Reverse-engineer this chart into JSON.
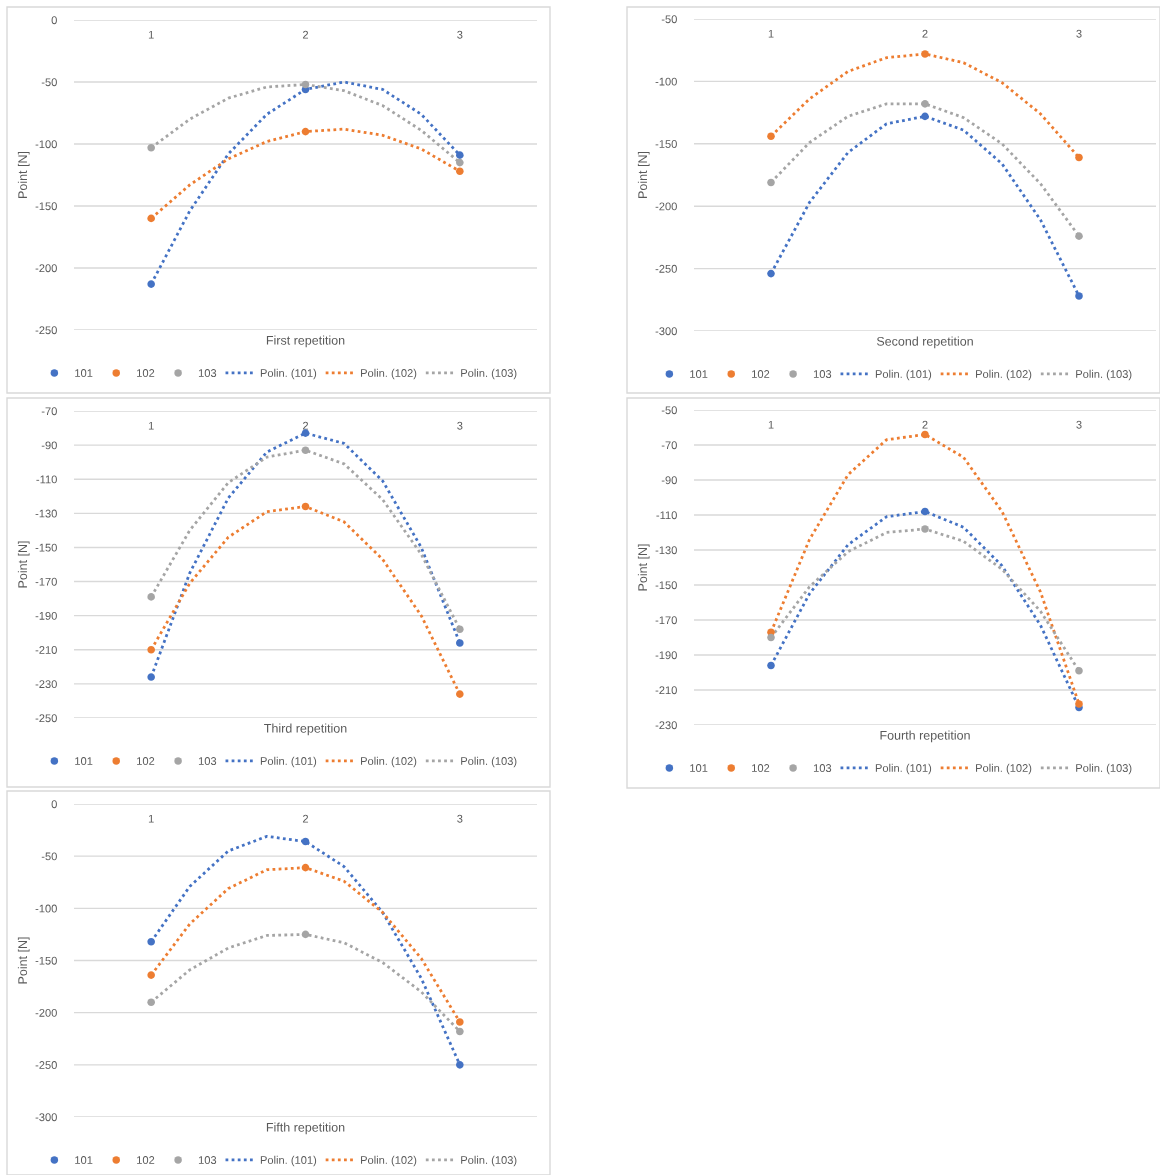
{
  "chart_data": [
    {
      "type": "scatter",
      "xlabel": "First repetition",
      "ylabel": "Point [N]",
      "x": [
        1,
        2,
        3
      ],
      "xlim": [
        0.5,
        3.5
      ],
      "xticks": [
        1,
        2,
        3
      ],
      "ylim": [
        -250,
        0
      ],
      "yticks": [
        0,
        -50,
        -100,
        -150,
        -200,
        -250
      ],
      "grid": "y",
      "legend": "bottom",
      "marker": "circle",
      "series": [
        {
          "name": "101",
          "color": "#4472c4",
          "values": [
            -213,
            -56,
            -109
          ]
        },
        {
          "name": "102",
          "color": "#ed7d31",
          "values": [
            -160,
            -90,
            -122
          ]
        },
        {
          "name": "103",
          "color": "#a5a5a5",
          "values": [
            -103,
            -52,
            -115
          ]
        },
        {
          "name": "Polin. (101)",
          "type": "line",
          "color": "#4472c4",
          "line_style": "dotted",
          "marker": "none",
          "x": [
            1,
            1.25,
            1.5,
            1.75,
            2,
            2.25,
            2.5,
            2.75,
            3
          ],
          "values": [
            -213,
            -154,
            -108,
            -76,
            -56,
            -50,
            -56,
            -76,
            -109
          ]
        },
        {
          "name": "Polin. (102)",
          "type": "line",
          "color": "#ed7d31",
          "line_style": "dotted",
          "marker": "none",
          "x": [
            1,
            1.25,
            1.5,
            1.75,
            2,
            2.25,
            2.5,
            2.75,
            3
          ],
          "values": [
            -160,
            -133,
            -112,
            -98,
            -90,
            -88,
            -93,
            -104,
            -122
          ]
        },
        {
          "name": "Polin. (103)",
          "type": "line",
          "color": "#a5a5a5",
          "line_style": "dotted",
          "marker": "none",
          "x": [
            1,
            1.25,
            1.5,
            1.75,
            2,
            2.25,
            2.5,
            2.75,
            3
          ],
          "values": [
            -103,
            -80,
            -63,
            -54,
            -52,
            -57,
            -69,
            -89,
            -115
          ]
        }
      ]
    },
    {
      "type": "scatter",
      "xlabel": "Second repetition",
      "ylabel": "Point [N]",
      "x": [
        1,
        2,
        3
      ],
      "xlim": [
        0.5,
        3.5
      ],
      "xticks": [
        1,
        2,
        3
      ],
      "ylim": [
        -300,
        -50
      ],
      "yticks": [
        -50,
        -100,
        -150,
        -200,
        -250,
        -300
      ],
      "grid": "y",
      "legend": "bottom",
      "marker": "circle",
      "series": [
        {
          "name": "101",
          "color": "#4472c4",
          "values": [
            -254,
            -128,
            -272
          ]
        },
        {
          "name": "102",
          "color": "#ed7d31",
          "values": [
            -144,
            -78,
            -161
          ]
        },
        {
          "name": "103",
          "color": "#a5a5a5",
          "values": [
            -181,
            -118,
            -224
          ]
        },
        {
          "name": "Polin. (101)",
          "type": "line",
          "color": "#4472c4",
          "line_style": "dotted",
          "marker": "none",
          "x": [
            1,
            1.25,
            1.5,
            1.75,
            2,
            2.25,
            2.5,
            2.75,
            3
          ],
          "values": [
            -254,
            -197,
            -157,
            -134,
            -128,
            -139,
            -166,
            -211,
            -272
          ]
        },
        {
          "name": "Polin. (102)",
          "type": "line",
          "color": "#ed7d31",
          "line_style": "dotted",
          "marker": "none",
          "x": [
            1,
            1.25,
            1.5,
            1.75,
            2,
            2.25,
            2.5,
            2.75,
            3
          ],
          "values": [
            -144,
            -114,
            -92,
            -81,
            -78,
            -85,
            -101,
            -126,
            -161
          ]
        },
        {
          "name": "Polin. (103)",
          "type": "line",
          "color": "#a5a5a5",
          "line_style": "dotted",
          "marker": "none",
          "x": [
            1,
            1.25,
            1.5,
            1.75,
            2,
            2.25,
            2.5,
            2.75,
            3
          ],
          "values": [
            -181,
            -149,
            -128,
            -118,
            -118,
            -129,
            -150,
            -182,
            -224
          ]
        }
      ]
    },
    {
      "type": "scatter",
      "xlabel": "Third repetition",
      "ylabel": "Point [N]",
      "x": [
        1,
        2,
        3
      ],
      "xlim": [
        0.5,
        3.5
      ],
      "xticks": [
        1,
        2,
        3
      ],
      "ylim": [
        -250,
        -70
      ],
      "yticks": [
        -70,
        -90,
        -110,
        -130,
        -150,
        -170,
        -190,
        -210,
        -230,
        -250
      ],
      "grid": "y",
      "legend": "bottom",
      "marker": "circle",
      "series": [
        {
          "name": "101",
          "color": "#4472c4",
          "values": [
            -226,
            -83,
            -206
          ]
        },
        {
          "name": "102",
          "color": "#ed7d31",
          "values": [
            -210,
            -126,
            -236
          ]
        },
        {
          "name": "103",
          "color": "#a5a5a5",
          "values": [
            -179,
            -93,
            -198
          ]
        },
        {
          "name": "Polin. (101)",
          "type": "line",
          "color": "#4472c4",
          "line_style": "dotted",
          "marker": "none",
          "x": [
            1,
            1.25,
            1.5,
            1.75,
            2,
            2.25,
            2.5,
            2.75,
            3
          ],
          "values": [
            -226,
            -165,
            -121,
            -94,
            -83,
            -89,
            -111,
            -150,
            -206
          ]
        },
        {
          "name": "Polin. (102)",
          "type": "line",
          "color": "#ed7d31",
          "line_style": "dotted",
          "marker": "none",
          "x": [
            1,
            1.25,
            1.5,
            1.75,
            2,
            2.25,
            2.5,
            2.75,
            3
          ],
          "values": [
            -210,
            -171,
            -144,
            -129,
            -126,
            -135,
            -157,
            -190,
            -236
          ]
        },
        {
          "name": "Polin. (103)",
          "type": "line",
          "color": "#a5a5a5",
          "line_style": "dotted",
          "marker": "none",
          "x": [
            1,
            1.25,
            1.5,
            1.75,
            2,
            2.25,
            2.5,
            2.75,
            3
          ],
          "values": [
            -179,
            -140,
            -112,
            -97,
            -93,
            -101,
            -122,
            -154,
            -198
          ]
        }
      ]
    },
    {
      "type": "scatter",
      "xlabel": "Fourth repetition",
      "ylabel": "Point [N]",
      "x": [
        1,
        2,
        3
      ],
      "xlim": [
        0.5,
        3.5
      ],
      "xticks": [
        1,
        2,
        3
      ],
      "ylim": [
        -230,
        -50
      ],
      "yticks": [
        -50,
        -70,
        -90,
        -110,
        -130,
        -150,
        -170,
        -190,
        -210,
        -230
      ],
      "grid": "y",
      "legend": "bottom",
      "marker": "circle",
      "series": [
        {
          "name": "101",
          "color": "#4472c4",
          "values": [
            -196,
            -108,
            -220
          ]
        },
        {
          "name": "102",
          "color": "#ed7d31",
          "values": [
            -177,
            -64,
            -218
          ]
        },
        {
          "name": "103",
          "color": "#a5a5a5",
          "values": [
            -180,
            -118,
            -199
          ]
        },
        {
          "name": "Polin. (101)",
          "type": "line",
          "color": "#4472c4",
          "line_style": "dotted",
          "marker": "none",
          "x": [
            1,
            1.25,
            1.5,
            1.75,
            2,
            2.25,
            2.5,
            2.75,
            3
          ],
          "values": [
            -196,
            -155,
            -127,
            -111,
            -108,
            -117,
            -139,
            -173,
            -220
          ]
        },
        {
          "name": "Polin. (102)",
          "type": "line",
          "color": "#ed7d31",
          "line_style": "dotted",
          "marker": "none",
          "x": [
            1,
            1.25,
            1.5,
            1.75,
            2,
            2.25,
            2.5,
            2.75,
            3
          ],
          "values": [
            -177,
            -124,
            -87,
            -67,
            -64,
            -77,
            -108,
            -154,
            -218
          ]
        },
        {
          "name": "Polin. (103)",
          "type": "line",
          "color": "#a5a5a5",
          "line_style": "dotted",
          "marker": "none",
          "x": [
            1,
            1.25,
            1.5,
            1.75,
            2,
            2.25,
            2.5,
            2.75,
            3
          ],
          "values": [
            -180,
            -151,
            -131,
            -120,
            -118,
            -125,
            -141,
            -165,
            -199
          ]
        }
      ]
    },
    {
      "type": "scatter",
      "xlabel": "Fifth repetition",
      "ylabel": "Point [N]",
      "x": [
        1,
        2,
        3
      ],
      "xlim": [
        0.5,
        3.5
      ],
      "xticks": [
        1,
        2,
        3
      ],
      "ylim": [
        -300,
        0
      ],
      "yticks": [
        0,
        -50,
        -100,
        -150,
        -200,
        -250,
        -300
      ],
      "grid": "y",
      "legend": "bottom",
      "marker": "circle",
      "series": [
        {
          "name": "101",
          "color": "#4472c4",
          "values": [
            -132,
            -36,
            -250
          ]
        },
        {
          "name": "102",
          "color": "#ed7d31",
          "values": [
            -164,
            -61,
            -209
          ]
        },
        {
          "name": "103",
          "color": "#a5a5a5",
          "values": [
            -190,
            -125,
            -218
          ]
        },
        {
          "name": "Polin. (101)",
          "type": "line",
          "color": "#4472c4",
          "line_style": "dotted",
          "marker": "none",
          "x": [
            1,
            1.25,
            1.5,
            1.75,
            2,
            2.25,
            2.5,
            2.75,
            3
          ],
          "values": [
            -132,
            -79,
            -45,
            -31,
            -36,
            -60,
            -104,
            -167,
            -250
          ]
        },
        {
          "name": "Polin. (102)",
          "type": "line",
          "color": "#ed7d31",
          "line_style": "dotted",
          "marker": "none",
          "x": [
            1,
            1.25,
            1.5,
            1.75,
            2,
            2.25,
            2.5,
            2.75,
            3
          ],
          "values": [
            -164,
            -115,
            -81,
            -63,
            -61,
            -74,
            -104,
            -148,
            -209
          ]
        },
        {
          "name": "Polin. (103)",
          "type": "line",
          "color": "#a5a5a5",
          "line_style": "dotted",
          "marker": "none",
          "x": [
            1,
            1.25,
            1.5,
            1.75,
            2,
            2.25,
            2.5,
            2.75,
            3
          ],
          "values": [
            -190,
            -159,
            -138,
            -126,
            -125,
            -133,
            -152,
            -180,
            -218
          ]
        }
      ]
    }
  ]
}
